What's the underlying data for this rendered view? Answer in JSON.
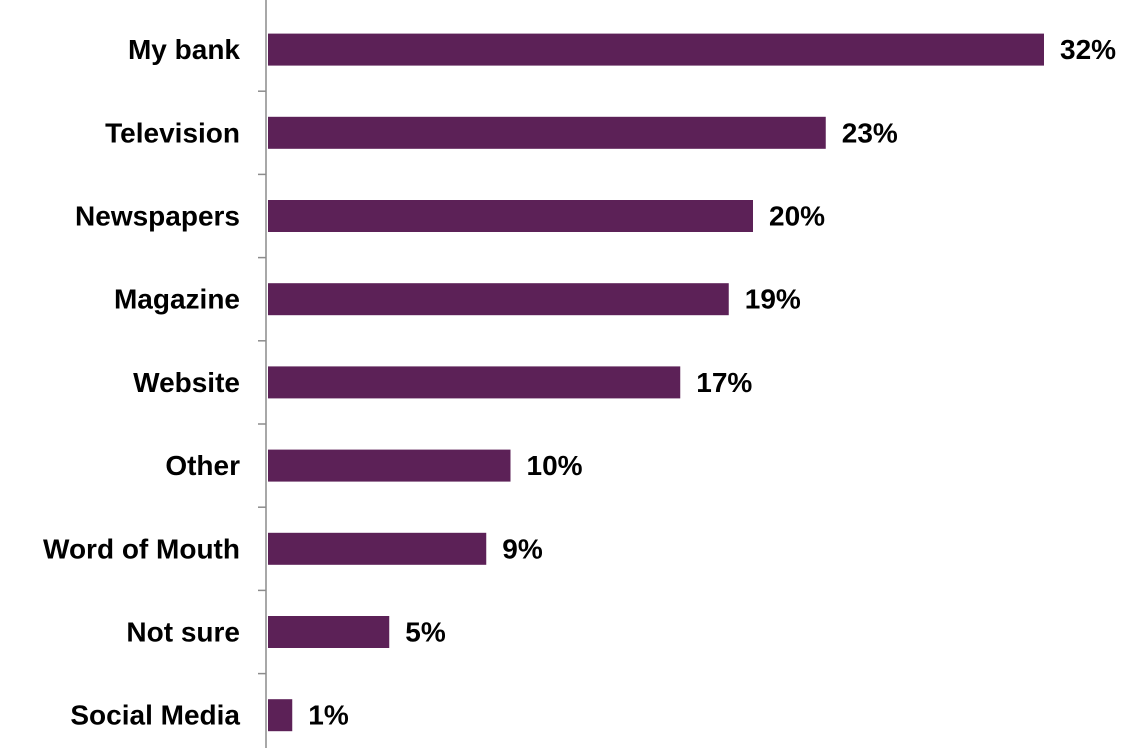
{
  "chart_data": {
    "type": "bar",
    "orientation": "horizontal",
    "categories": [
      "My bank",
      "Television",
      "Newspapers",
      "Magazine",
      "Website",
      "Other",
      "Word of Mouth",
      "Not sure",
      "Social Media"
    ],
    "values": [
      32,
      23,
      20,
      19,
      17,
      10,
      9,
      5,
      1
    ],
    "value_labels": [
      "32%",
      "23%",
      "20%",
      "19%",
      "17%",
      "10%",
      "9%",
      "5%",
      "1%"
    ],
    "unit": "%",
    "xlim": [
      0,
      32
    ],
    "grid": false,
    "legend": "none",
    "bar_color": "#5c2157"
  }
}
